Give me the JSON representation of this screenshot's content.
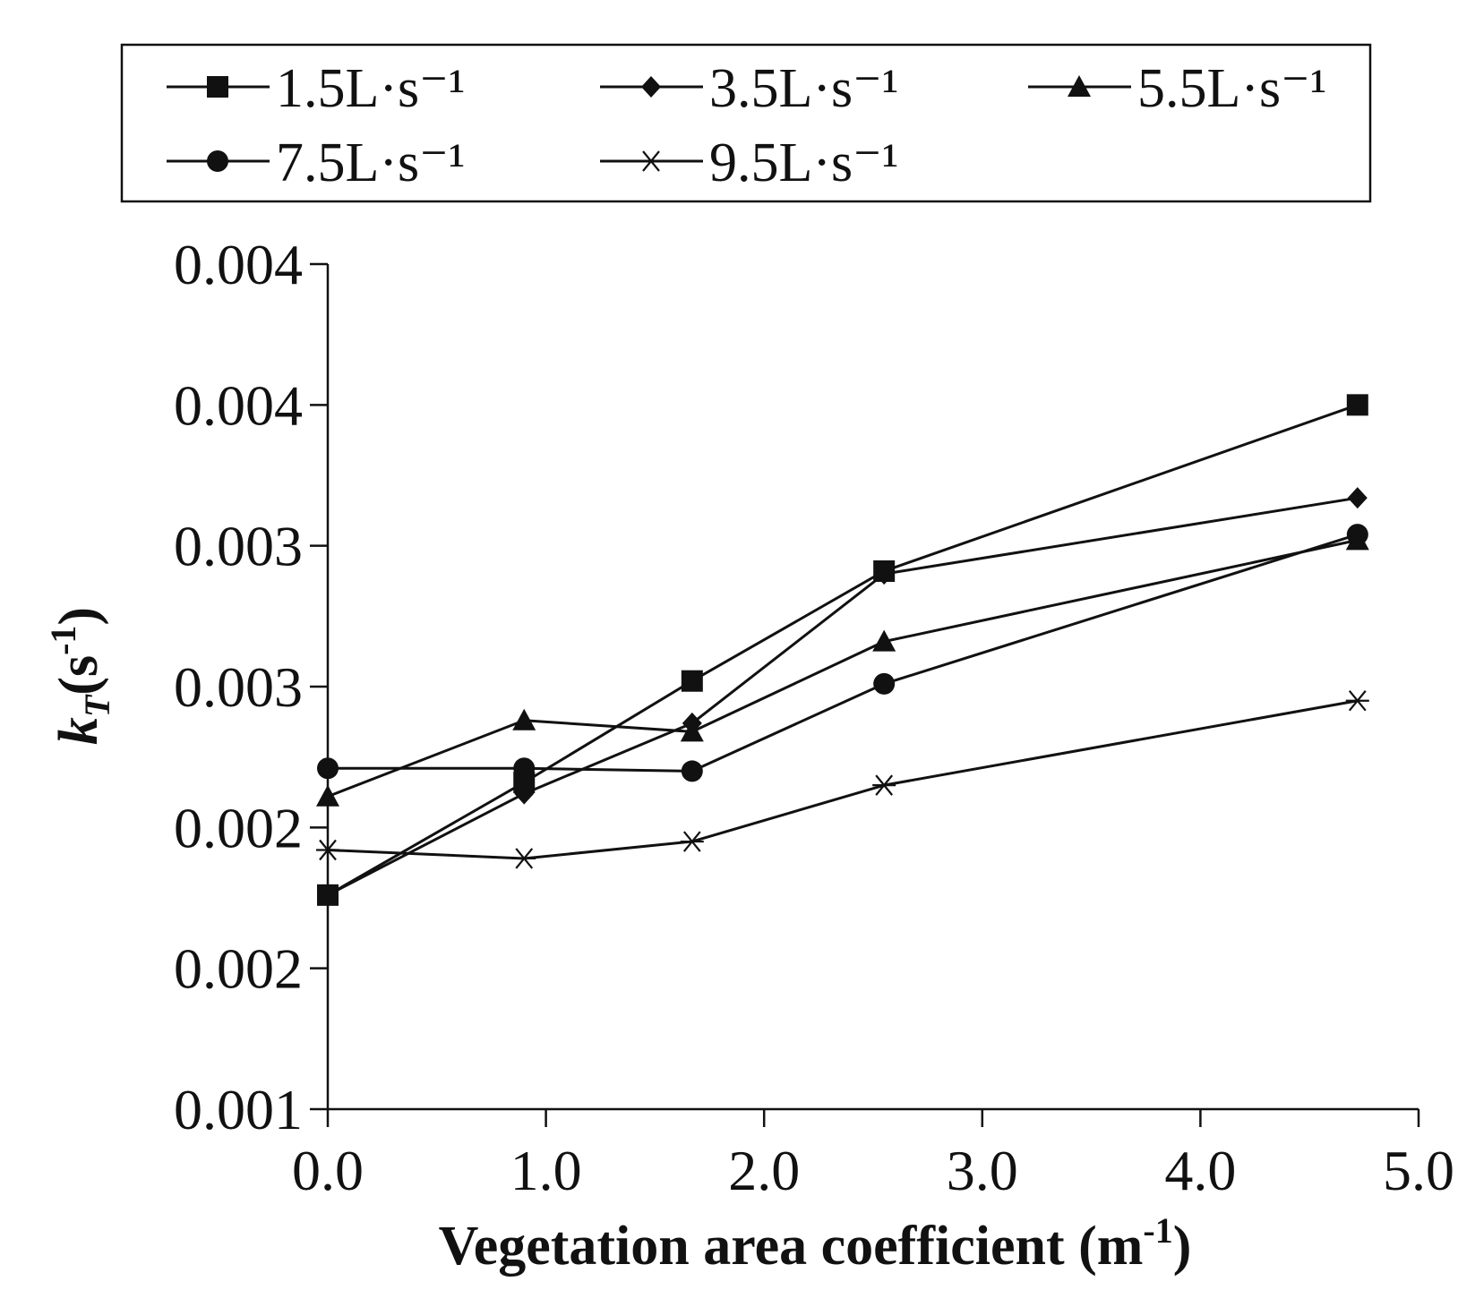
{
  "chart_data": {
    "type": "line",
    "title": "",
    "xlabel": "Vegetation area coefficient  (m",
    "xlabel_sup": "-1",
    "xlabel_end": ")",
    "ylabel": "k",
    "ylabel_sub": "T",
    "ylabel_units": "(s",
    "ylabel_units_sup": "-1",
    "ylabel_units_end": ")",
    "xlim": [
      0,
      5
    ],
    "ylim": [
      0.001,
      0.004
    ],
    "x_ticks": [
      "0.0",
      "1.0",
      "2.0",
      "3.0",
      "4.0",
      "5.0"
    ],
    "x_tick_values": [
      0,
      1,
      2,
      3,
      4,
      5
    ],
    "y_ticks": [
      "0.001",
      "0.002",
      "0.002",
      "0.003",
      "0.003",
      "0.004",
      "0.004"
    ],
    "y_tick_values": [
      0.001,
      0.0015,
      0.002,
      0.0025,
      0.003,
      0.0035,
      0.004
    ],
    "grid": false,
    "legend_position": "top",
    "x": [
      0,
      0.9,
      1.67,
      2.55,
      4.72
    ],
    "series": [
      {
        "name": "1.5L·s⁻¹",
        "marker": "square",
        "values": [
          0.00176,
          0.00216,
          0.00252,
          0.00291,
          0.0035
        ]
      },
      {
        "name": "3.5L·s⁻¹",
        "marker": "diamond",
        "values": [
          0.00176,
          0.00212,
          0.00237,
          0.0029,
          0.00317
        ]
      },
      {
        "name": "5.5L·s⁻¹",
        "marker": "triangle",
        "values": [
          0.00211,
          0.00238,
          0.00234,
          0.00266,
          0.00302
        ]
      },
      {
        "name": "7.5L·s⁻¹",
        "marker": "circle",
        "values": [
          0.00221,
          0.00221,
          0.0022,
          0.00251,
          0.00304
        ]
      },
      {
        "name": "9.5L·s⁻¹",
        "marker": "asterisk",
        "values": [
          0.00192,
          0.00189,
          0.00195,
          0.00215,
          0.00245
        ]
      }
    ]
  }
}
